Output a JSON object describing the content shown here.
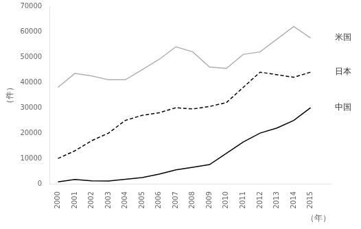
{
  "chart_data": {
    "type": "line",
    "x": [
      2000,
      2001,
      2002,
      2003,
      2004,
      2005,
      2006,
      2007,
      2008,
      2009,
      2010,
      2011,
      2012,
      2013,
      2014,
      2015
    ],
    "series": [
      {
        "name": "米国",
        "color": "#b0b0b0",
        "line_style": "solid",
        "values": [
          38000,
          43500,
          42500,
          41000,
          41000,
          45000,
          49000,
          54000,
          52000,
          46000,
          45500,
          51000,
          52000,
          57000,
          62000,
          57500
        ]
      },
      {
        "name": "日本",
        "color": "#000000",
        "line_style": "dashed",
        "values": [
          10000,
          13000,
          17000,
          20000,
          25000,
          27000,
          28000,
          30000,
          29500,
          30500,
          32000,
          38000,
          44000,
          43000,
          42000,
          44000
        ]
      },
      {
        "name": "中国",
        "color": "#000000",
        "line_style": "solid",
        "values": [
          800,
          1700,
          1200,
          1100,
          1800,
          2500,
          3800,
          5500,
          6500,
          7600,
          12000,
          16500,
          20000,
          22000,
          25000,
          30000
        ]
      }
    ],
    "x_label": "（年）",
    "y_label": "（件）",
    "xlim": [
      1999.5,
      2016.2
    ],
    "xticks": [
      2000,
      2001,
      2002,
      2003,
      2004,
      2005,
      2006,
      2007,
      2008,
      2009,
      2010,
      2011,
      2012,
      2013,
      2014,
      2015
    ],
    "ylim": [
      0,
      70000
    ],
    "yticks": [
      0,
      10000,
      20000,
      30000,
      40000,
      50000,
      60000,
      70000
    ],
    "grid": false
  }
}
